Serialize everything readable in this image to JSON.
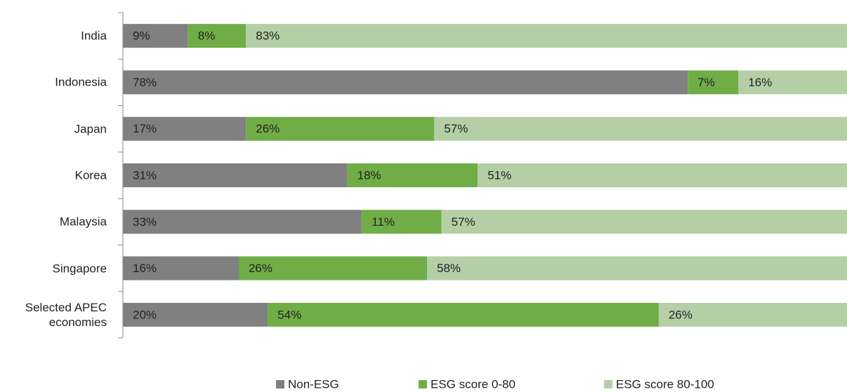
{
  "chart_data": {
    "type": "stacked_bar_horizontal",
    "categories": [
      "India",
      "Indonesia",
      "Japan",
      "Korea",
      "Malaysia",
      "Singapore",
      "Selected APEC economies"
    ],
    "xlim": [
      0,
      100
    ],
    "series": [
      {
        "name": "Non-ESG",
        "color": "#808080",
        "values": [
          9,
          78,
          17,
          31,
          33,
          16,
          20
        ],
        "value_labels": [
          "9%",
          "78%",
          "17%",
          "31%",
          "33%",
          "16%",
          "20%"
        ]
      },
      {
        "name": "ESG score 0-80",
        "color": "#70ad47",
        "values": [
          8,
          7,
          26,
          18,
          11,
          26,
          54
        ],
        "value_labels": [
          "8%",
          "7%",
          "26%",
          "18%",
          "11%",
          "26%",
          "54%"
        ]
      },
      {
        "name": "ESG score 80-100",
        "color": "#b4cfa6",
        "values": [
          83,
          16,
          57,
          51,
          57,
          58,
          26
        ],
        "value_labels": [
          "83%",
          "16%",
          "57%",
          "51%",
          "57%",
          "58%",
          "26%"
        ]
      }
    ],
    "legend": "bottom"
  }
}
